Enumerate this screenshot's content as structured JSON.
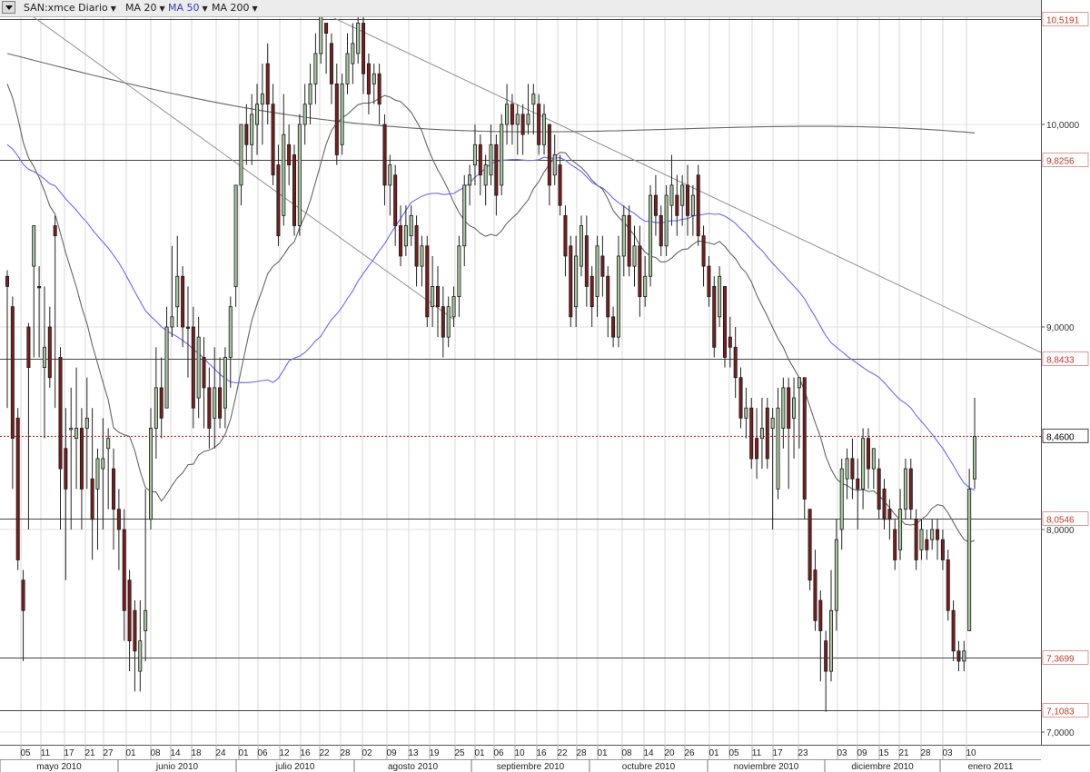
{
  "toolbar": {
    "symbol": "SAN:xmce Diario",
    "indicators": [
      {
        "label": "MA 20",
        "color": "#222222"
      },
      {
        "label": "MA 50",
        "color": "#3a3ab8"
      },
      {
        "label": "MA 200",
        "color": "#222222"
      }
    ]
  },
  "chart_data": {
    "type": "candlestick",
    "symbol": "SAN:xmce Diario",
    "y_axis": {
      "range": [
        6.95,
        10.6
      ],
      "ticks": [
        "7,0000",
        "8,0000",
        "9,0000",
        "10,0000"
      ],
      "horizontal_levels": [
        {
          "value": 10.5191,
          "label": "10,5191"
        },
        {
          "value": 9.8256,
          "label": "9,8256"
        },
        {
          "value": 8.8433,
          "label": "8,8433"
        },
        {
          "value": 8.0546,
          "label": "8,0546"
        },
        {
          "value": 7.3699,
          "label": "7,3699"
        },
        {
          "value": 7.1083,
          "label": "7,1083"
        }
      ],
      "current_price": {
        "value": 8.46,
        "label": "8,4600"
      }
    },
    "x_axis": {
      "day_ticks": [
        "05",
        "11",
        "17",
        "21",
        "27",
        "01",
        "08",
        "14",
        "18",
        "24",
        "01",
        "06",
        "12",
        "16",
        "22",
        "28",
        "02",
        "09",
        "13",
        "19",
        "25",
        "01",
        "06",
        "10",
        "16",
        "22",
        "28",
        "01",
        "08",
        "14",
        "20",
        "26",
        "01",
        "05",
        "11",
        "17",
        "23",
        "03",
        "09",
        "15",
        "21",
        "28",
        "03",
        "10"
      ],
      "months": [
        "mayo 2010",
        "junio 2010",
        "julio 2010",
        "agosto 2010",
        "septiembre 2010",
        "octubre 2010",
        "noviembre 2010",
        "diciembre 2010",
        "enero 2011"
      ]
    },
    "candles": [
      [
        9.25,
        9.2,
        9.28,
        8.6,
        "d"
      ],
      [
        9.1,
        8.45,
        9.15,
        8.2,
        "d"
      ],
      [
        8.55,
        7.85,
        8.6,
        7.8,
        "d"
      ],
      [
        7.75,
        7.6,
        7.8,
        7.35,
        "d"
      ],
      [
        9.0,
        8.8,
        9.02,
        8.0,
        "d"
      ],
      [
        9.3,
        9.5,
        9.5,
        8.85,
        "u"
      ],
      [
        9.2,
        9.2,
        9.3,
        8.85,
        "d"
      ],
      [
        8.8,
        8.9,
        9.2,
        8.45,
        "u"
      ],
      [
        9.0,
        8.75,
        9.1,
        8.7,
        "d"
      ],
      [
        9.5,
        9.45,
        9.55,
        8.6,
        "d"
      ],
      [
        8.85,
        8.3,
        8.9,
        8.0,
        "d"
      ],
      [
        8.4,
        8.2,
        8.6,
        7.75,
        "d"
      ],
      [
        8.5,
        8.5,
        8.7,
        8.0,
        "u"
      ],
      [
        8.45,
        8.5,
        8.8,
        8.2,
        "u"
      ],
      [
        8.5,
        8.2,
        8.6,
        8.0,
        "d"
      ],
      [
        8.5,
        8.55,
        8.75,
        8.2,
        "u"
      ],
      [
        8.25,
        8.05,
        8.6,
        7.85,
        "d"
      ],
      [
        8.2,
        8.35,
        8.4,
        7.9,
        "u"
      ],
      [
        8.3,
        8.35,
        8.55,
        8.0,
        "u"
      ],
      [
        8.4,
        8.45,
        8.5,
        8.1,
        "u"
      ],
      [
        8.3,
        8.1,
        8.4,
        7.9,
        "d"
      ],
      [
        8.1,
        8.0,
        8.2,
        7.8,
        "d"
      ],
      [
        8.0,
        7.6,
        8.1,
        7.45,
        "d"
      ],
      [
        7.75,
        7.45,
        7.8,
        7.3,
        "d"
      ],
      [
        7.6,
        7.4,
        7.65,
        7.2,
        "d"
      ],
      [
        7.3,
        7.45,
        7.65,
        7.2,
        "u"
      ],
      [
        7.5,
        7.6,
        8.2,
        7.35,
        "u"
      ],
      [
        8.05,
        8.5,
        8.6,
        8.0,
        "u"
      ],
      [
        8.5,
        8.7,
        8.9,
        8.35,
        "u"
      ],
      [
        8.7,
        8.55,
        8.85,
        8.45,
        "d"
      ],
      [
        8.6,
        9.0,
        9.1,
        8.6,
        "u"
      ],
      [
        9.0,
        9.05,
        9.4,
        8.95,
        "u"
      ],
      [
        9.1,
        9.25,
        9.45,
        9.0,
        "u"
      ],
      [
        9.25,
        9.0,
        9.3,
        8.9,
        "d"
      ],
      [
        9.0,
        9.0,
        9.2,
        8.75,
        "d"
      ],
      [
        9.0,
        8.6,
        9.1,
        8.5,
        "d"
      ],
      [
        8.65,
        8.95,
        9.05,
        8.55,
        "u"
      ],
      [
        8.85,
        8.7,
        8.95,
        8.5,
        "d"
      ],
      [
        8.7,
        8.5,
        8.8,
        8.4,
        "d"
      ],
      [
        8.55,
        8.7,
        8.9,
        8.4,
        "u"
      ],
      [
        8.7,
        8.55,
        8.85,
        8.5,
        "d"
      ],
      [
        8.6,
        8.85,
        8.9,
        8.5,
        "u"
      ],
      [
        8.85,
        9.1,
        9.15,
        8.7,
        "u"
      ],
      [
        9.2,
        9.7,
        9.7,
        9.1,
        "u"
      ],
      [
        9.7,
        10.0,
        10.0,
        9.6,
        "u"
      ],
      [
        10.0,
        9.9,
        10.1,
        9.8,
        "d"
      ],
      [
        9.9,
        10.05,
        10.15,
        9.8,
        "u"
      ],
      [
        10.0,
        10.1,
        10.2,
        9.85,
        "u"
      ],
      [
        10.1,
        10.15,
        10.3,
        9.9,
        "u"
      ],
      [
        10.3,
        10.1,
        10.4,
        10.0,
        "d"
      ],
      [
        10.1,
        9.75,
        10.2,
        9.7,
        "d"
      ],
      [
        9.8,
        9.45,
        9.9,
        9.4,
        "d"
      ],
      [
        9.55,
        9.95,
        10.15,
        9.5,
        "u"
      ],
      [
        9.9,
        9.8,
        10.0,
        9.7,
        "d"
      ],
      [
        9.85,
        9.5,
        9.9,
        9.45,
        "d"
      ],
      [
        9.5,
        10.0,
        10.05,
        9.45,
        "u"
      ],
      [
        10.0,
        10.1,
        10.2,
        9.9,
        "u"
      ],
      [
        10.1,
        10.2,
        10.3,
        10.0,
        "u"
      ],
      [
        10.2,
        10.35,
        10.45,
        10.1,
        "u"
      ],
      [
        10.35,
        10.55,
        10.6,
        10.3,
        "u"
      ],
      [
        10.5,
        10.45,
        10.5,
        10.25,
        "d"
      ],
      [
        10.4,
        10.2,
        10.45,
        10.1,
        "d"
      ],
      [
        10.2,
        9.85,
        10.3,
        9.8,
        "d"
      ],
      [
        9.9,
        10.2,
        10.25,
        9.85,
        "u"
      ],
      [
        10.2,
        10.35,
        10.45,
        10.15,
        "u"
      ],
      [
        10.3,
        10.4,
        10.5,
        10.2,
        "u"
      ],
      [
        10.35,
        10.5,
        10.55,
        10.3,
        "u"
      ],
      [
        10.5,
        10.25,
        10.55,
        10.15,
        "d"
      ],
      [
        10.3,
        10.15,
        10.35,
        10.05,
        "d"
      ],
      [
        10.2,
        10.25,
        10.3,
        10.1,
        "u"
      ],
      [
        10.25,
        10.1,
        10.3,
        10.0,
        "d"
      ],
      [
        10.0,
        9.7,
        10.05,
        9.6,
        "d"
      ],
      [
        9.7,
        9.8,
        9.85,
        9.55,
        "u"
      ],
      [
        9.75,
        9.5,
        9.8,
        9.4,
        "d"
      ],
      [
        9.5,
        9.35,
        9.6,
        9.3,
        "d"
      ],
      [
        9.4,
        9.5,
        9.6,
        9.35,
        "u"
      ],
      [
        9.45,
        9.55,
        9.6,
        9.4,
        "u"
      ],
      [
        9.5,
        9.3,
        9.55,
        9.2,
        "d"
      ],
      [
        9.3,
        9.4,
        9.45,
        9.2,
        "u"
      ],
      [
        9.4,
        9.05,
        9.45,
        9.0,
        "d"
      ],
      [
        9.1,
        9.2,
        9.35,
        9.0,
        "u"
      ],
      [
        9.2,
        9.1,
        9.3,
        8.95,
        "d"
      ],
      [
        9.1,
        8.95,
        9.2,
        8.85,
        "d"
      ],
      [
        8.95,
        9.1,
        9.15,
        8.9,
        "u"
      ],
      [
        9.05,
        9.15,
        9.2,
        9.0,
        "u"
      ],
      [
        9.15,
        9.4,
        9.45,
        9.05,
        "u"
      ],
      [
        9.4,
        9.7,
        9.75,
        9.3,
        "u"
      ],
      [
        9.7,
        9.75,
        9.8,
        9.6,
        "u"
      ],
      [
        9.8,
        9.9,
        10.0,
        9.7,
        "u"
      ],
      [
        9.9,
        9.75,
        9.95,
        9.65,
        "d"
      ],
      [
        9.7,
        9.8,
        9.85,
        9.6,
        "u"
      ],
      [
        9.75,
        9.9,
        10.0,
        9.7,
        "u"
      ],
      [
        9.9,
        9.65,
        9.95,
        9.55,
        "d"
      ],
      [
        9.7,
        10.0,
        10.05,
        9.65,
        "u"
      ],
      [
        10.0,
        10.1,
        10.2,
        9.9,
        "u"
      ],
      [
        10.1,
        10.0,
        10.15,
        9.9,
        "d"
      ],
      [
        10.0,
        10.05,
        10.1,
        9.85,
        "u"
      ],
      [
        10.05,
        9.95,
        10.1,
        9.85,
        "d"
      ],
      [
        10.0,
        10.05,
        10.2,
        9.95,
        "u"
      ],
      [
        10.1,
        10.15,
        10.2,
        9.95,
        "u"
      ],
      [
        10.1,
        9.9,
        10.15,
        9.85,
        "d"
      ],
      [
        9.9,
        10.05,
        10.1,
        9.85,
        "u"
      ],
      [
        10.0,
        9.7,
        10.0,
        9.6,
        "d"
      ],
      [
        9.75,
        9.85,
        9.95,
        9.7,
        "u"
      ],
      [
        9.8,
        9.6,
        9.85,
        9.55,
        "d"
      ],
      [
        9.55,
        9.35,
        9.6,
        9.25,
        "d"
      ],
      [
        9.4,
        9.05,
        9.45,
        9.0,
        "d"
      ],
      [
        9.1,
        9.35,
        9.45,
        9.0,
        "u"
      ],
      [
        9.3,
        9.5,
        9.55,
        9.25,
        "u"
      ],
      [
        9.45,
        9.2,
        9.55,
        9.1,
        "d"
      ],
      [
        9.25,
        9.1,
        9.3,
        9.0,
        "d"
      ],
      [
        9.15,
        9.4,
        9.45,
        9.05,
        "u"
      ],
      [
        9.35,
        9.25,
        9.45,
        9.15,
        "d"
      ],
      [
        9.25,
        9.05,
        9.3,
        8.95,
        "d"
      ],
      [
        9.05,
        8.95,
        9.1,
        8.9,
        "d"
      ],
      [
        8.95,
        9.35,
        9.45,
        8.9,
        "u"
      ],
      [
        9.35,
        9.55,
        9.6,
        9.25,
        "u"
      ],
      [
        9.55,
        9.3,
        9.6,
        9.25,
        "d"
      ],
      [
        9.3,
        9.4,
        9.5,
        9.2,
        "u"
      ],
      [
        9.4,
        9.15,
        9.5,
        9.05,
        "d"
      ],
      [
        9.15,
        9.25,
        9.35,
        9.1,
        "u"
      ],
      [
        9.25,
        9.65,
        9.7,
        9.2,
        "u"
      ],
      [
        9.65,
        9.55,
        9.75,
        9.45,
        "d"
      ],
      [
        9.55,
        9.4,
        9.6,
        9.35,
        "d"
      ],
      [
        9.4,
        9.65,
        9.7,
        9.35,
        "u"
      ],
      [
        9.6,
        9.7,
        9.85,
        9.5,
        "u"
      ],
      [
        9.65,
        9.55,
        9.75,
        9.45,
        "d"
      ],
      [
        9.6,
        9.7,
        9.75,
        9.5,
        "u"
      ],
      [
        9.7,
        9.55,
        9.8,
        9.45,
        "d"
      ],
      [
        9.55,
        9.65,
        9.7,
        9.45,
        "u"
      ],
      [
        9.75,
        9.45,
        9.8,
        9.4,
        "d"
      ],
      [
        9.45,
        9.3,
        9.5,
        9.2,
        "d"
      ],
      [
        9.3,
        9.15,
        9.35,
        9.1,
        "d"
      ],
      [
        9.2,
        8.9,
        9.25,
        8.85,
        "d"
      ],
      [
        9.05,
        9.25,
        9.3,
        9.0,
        "u"
      ],
      [
        9.2,
        8.85,
        9.2,
        8.8,
        "d"
      ],
      [
        8.95,
        8.9,
        9.05,
        8.8,
        "d"
      ],
      [
        8.9,
        8.75,
        9.0,
        8.65,
        "d"
      ],
      [
        8.75,
        8.55,
        8.8,
        8.5,
        "d"
      ],
      [
        8.55,
        8.6,
        8.7,
        8.45,
        "u"
      ],
      [
        8.6,
        8.35,
        8.65,
        8.3,
        "d"
      ],
      [
        8.45,
        8.35,
        8.6,
        8.25,
        "d"
      ],
      [
        8.45,
        8.5,
        8.65,
        8.3,
        "u"
      ],
      [
        8.6,
        8.35,
        8.65,
        8.3,
        "d"
      ],
      [
        8.5,
        8.55,
        8.6,
        8.0,
        "u"
      ],
      [
        8.2,
        8.6,
        8.7,
        8.15,
        "u"
      ],
      [
        8.5,
        8.7,
        8.75,
        8.4,
        "u"
      ],
      [
        8.7,
        8.5,
        8.75,
        8.2,
        "d"
      ],
      [
        8.55,
        8.65,
        8.75,
        8.35,
        "u"
      ],
      [
        8.7,
        8.75,
        8.75,
        8.4,
        "u"
      ],
      [
        8.75,
        8.15,
        8.75,
        8.05,
        "d"
      ],
      [
        8.1,
        7.75,
        8.1,
        7.7,
        "d"
      ],
      [
        7.8,
        7.55,
        7.9,
        7.5,
        "d"
      ],
      [
        7.65,
        7.5,
        7.7,
        7.25,
        "d"
      ],
      [
        7.45,
        7.3,
        7.5,
        7.1,
        "d"
      ],
      [
        7.3,
        7.6,
        7.8,
        7.25,
        "u"
      ],
      [
        7.6,
        7.95,
        8.05,
        7.5,
        "u"
      ],
      [
        8.0,
        8.3,
        8.35,
        7.9,
        "u"
      ],
      [
        8.25,
        8.35,
        8.4,
        8.15,
        "u"
      ],
      [
        8.35,
        8.25,
        8.45,
        8.15,
        "d"
      ],
      [
        8.25,
        8.2,
        8.35,
        8.0,
        "d"
      ],
      [
        8.2,
        8.45,
        8.5,
        8.1,
        "u"
      ],
      [
        8.45,
        8.3,
        8.5,
        8.2,
        "d"
      ],
      [
        8.3,
        8.4,
        8.4,
        8.2,
        "u"
      ],
      [
        8.3,
        8.1,
        8.35,
        8.05,
        "d"
      ],
      [
        8.2,
        8.05,
        8.25,
        8.0,
        "d"
      ],
      [
        8.1,
        8.05,
        8.15,
        7.95,
        "d"
      ],
      [
        8.0,
        7.85,
        8.05,
        7.8,
        "d"
      ],
      [
        7.9,
        8.1,
        8.2,
        7.85,
        "u"
      ],
      [
        8.1,
        8.3,
        8.35,
        8.05,
        "u"
      ],
      [
        8.3,
        8.1,
        8.35,
        8.05,
        "d"
      ],
      [
        8.05,
        7.85,
        8.1,
        7.8,
        "d"
      ],
      [
        7.9,
        8.0,
        8.05,
        7.85,
        "u"
      ],
      [
        7.95,
        7.9,
        8.0,
        7.85,
        "d"
      ],
      [
        7.95,
        8.0,
        8.05,
        7.9,
        "u"
      ],
      [
        8.0,
        7.95,
        8.05,
        7.85,
        "d"
      ],
      [
        7.95,
        7.85,
        8.0,
        7.8,
        "d"
      ],
      [
        7.85,
        7.6,
        7.9,
        7.55,
        "d"
      ],
      [
        7.6,
        7.4,
        7.65,
        7.35,
        "d"
      ],
      [
        7.4,
        7.35,
        7.45,
        7.3,
        "d"
      ],
      [
        7.35,
        7.4,
        7.45,
        7.3,
        "u"
      ],
      [
        7.5,
        8.2,
        8.3,
        7.5,
        "u"
      ],
      [
        8.25,
        8.46,
        8.65,
        8.2,
        "u"
      ]
    ],
    "series": [
      {
        "name": "MA 20",
        "color": "#666666"
      },
      {
        "name": "MA 50",
        "color": "#6a6af0"
      },
      {
        "name": "MA 200",
        "color": "#666666"
      }
    ]
  }
}
